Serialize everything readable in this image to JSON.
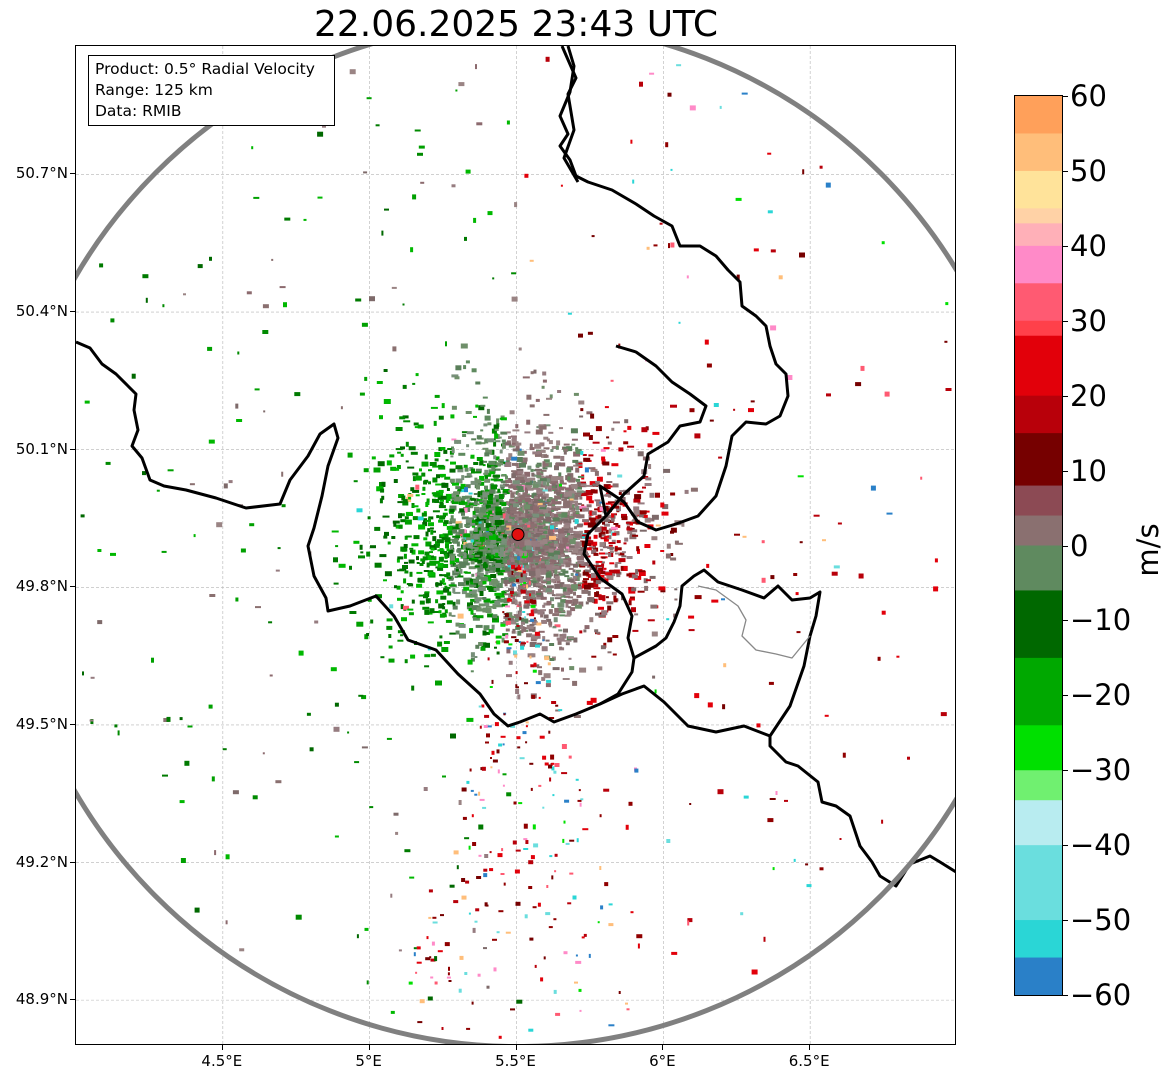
{
  "title": "22.06.2025 23:43 UTC",
  "info": {
    "product": "Product: 0.5° Radial Velocity",
    "range": "Range: 125 km",
    "data": "Data: RMIB"
  },
  "map": {
    "lon_range": [
      4.0,
      7.0
    ],
    "lat_range": [
      48.8,
      50.98
    ],
    "radar_site": {
      "lon": 5.505,
      "lat": 49.915,
      "color": "#e01010"
    },
    "range_ring_color": "#808080",
    "grid": true,
    "lat_ticks": [
      {
        "value": 50.7,
        "label": "50.7°N"
      },
      {
        "value": 50.4,
        "label": "50.4°N"
      },
      {
        "value": 50.1,
        "label": "50.1°N"
      },
      {
        "value": 49.8,
        "label": "49.8°N"
      },
      {
        "value": 49.5,
        "label": "49.5°N"
      },
      {
        "value": 49.2,
        "label": "49.2°N"
      },
      {
        "value": 48.9,
        "label": "48.9°N"
      }
    ],
    "lon_ticks": [
      {
        "value": 4.5,
        "label": "4.5°E"
      },
      {
        "value": 5.0,
        "label": "5°E"
      },
      {
        "value": 5.5,
        "label": "5.5°E"
      },
      {
        "value": 6.0,
        "label": "6°E"
      },
      {
        "value": 6.5,
        "label": "6.5°E"
      }
    ]
  },
  "colorbar": {
    "unit": "m/s",
    "min": -60,
    "max": 60,
    "ticks": [
      {
        "value": 60,
        "label": "60"
      },
      {
        "value": 50,
        "label": "50"
      },
      {
        "value": 40,
        "label": "40"
      },
      {
        "value": 30,
        "label": "30"
      },
      {
        "value": 20,
        "label": "20"
      },
      {
        "value": 10,
        "label": "10"
      },
      {
        "value": 0,
        "label": "0"
      },
      {
        "value": -10,
        "label": "−10"
      },
      {
        "value": -20,
        "label": "−20"
      },
      {
        "value": -30,
        "label": "−30"
      },
      {
        "value": -40,
        "label": "−40"
      },
      {
        "value": -50,
        "label": "−50"
      },
      {
        "value": -60,
        "label": "−60"
      }
    ],
    "colors": [
      {
        "from": 55,
        "to": 60,
        "color": "#ffa05a"
      },
      {
        "from": 50,
        "to": 55,
        "color": "#ffbe7a"
      },
      {
        "from": 45,
        "to": 50,
        "color": "#ffe39a"
      },
      {
        "from": 43,
        "to": 45,
        "color": "#ffd2a6"
      },
      {
        "from": 40,
        "to": 43,
        "color": "#ffb0b8"
      },
      {
        "from": 35,
        "to": 40,
        "color": "#ff8ac8"
      },
      {
        "from": 30,
        "to": 35,
        "color": "#ff5a72"
      },
      {
        "from": 28,
        "to": 30,
        "color": "#ff404a"
      },
      {
        "from": 20,
        "to": 28,
        "color": "#e2000a"
      },
      {
        "from": 15,
        "to": 20,
        "color": "#b8000a"
      },
      {
        "from": 8,
        "to": 15,
        "color": "#760000"
      },
      {
        "from": 4,
        "to": 8,
        "color": "#8c4a54"
      },
      {
        "from": 0,
        "to": 4,
        "color": "#8a7070"
      },
      {
        "from": -6,
        "to": 0,
        "color": "#5f8a5f"
      },
      {
        "from": -15,
        "to": -6,
        "color": "#006800"
      },
      {
        "from": -24,
        "to": -15,
        "color": "#00a800"
      },
      {
        "from": -30,
        "to": -24,
        "color": "#00e000"
      },
      {
        "from": -34,
        "to": -30,
        "color": "#70f070"
      },
      {
        "from": -40,
        "to": -34,
        "color": "#b8ecf0"
      },
      {
        "from": -50,
        "to": -40,
        "color": "#6adede"
      },
      {
        "from": -55,
        "to": -50,
        "color": "#2ad6d6"
      },
      {
        "from": -60,
        "to": -55,
        "color": "#2a80c8"
      }
    ]
  }
}
